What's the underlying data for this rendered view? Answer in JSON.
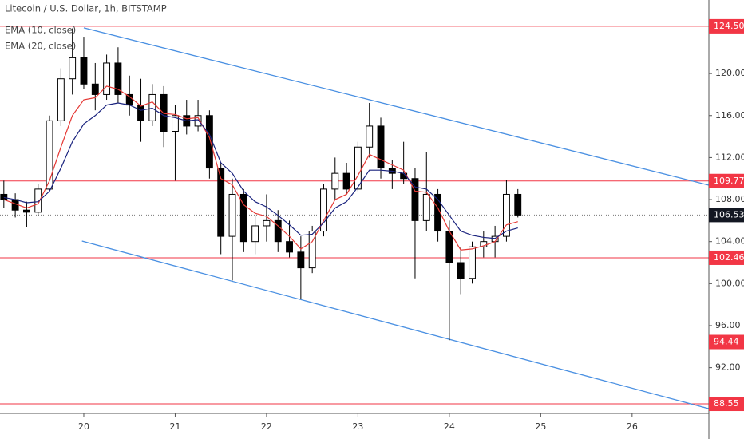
{
  "chart_data": {
    "type": "candlestick",
    "title": "Litecoin / U.S. Dollar, 1h, BITSTAMP",
    "x": [
      19.125,
      19.25,
      19.375,
      19.5,
      19.625,
      19.75,
      19.875,
      20.0,
      20.125,
      20.25,
      20.375,
      20.5,
      20.625,
      20.75,
      20.875,
      21.0,
      21.125,
      21.25,
      21.375,
      21.5,
      21.625,
      21.75,
      21.875,
      22.0,
      22.125,
      22.25,
      22.375,
      22.5,
      22.625,
      22.75,
      22.875,
      23.0,
      23.125,
      23.25,
      23.375,
      23.5,
      23.625,
      23.75,
      23.875,
      24.0,
      24.125,
      24.25,
      24.375,
      24.5,
      24.625,
      24.75
    ],
    "open": [
      108.5,
      108.0,
      107.0,
      106.8,
      109.0,
      115.5,
      119.5,
      121.5,
      119.0,
      118.0,
      121.0,
      118.0,
      117.0,
      115.5,
      118.0,
      114.5,
      116.0,
      115.0,
      116.0,
      111.0,
      104.5,
      108.5,
      104.0,
      105.5,
      106.0,
      104.0,
      103.0,
      101.5,
      105.0,
      109.0,
      110.5,
      109.0,
      113.0,
      115.0,
      111.0,
      110.5,
      110.0,
      106.0,
      108.5,
      105.0,
      102.0,
      100.5,
      103.5,
      104.0,
      104.5,
      108.5
    ],
    "high": [
      109.8,
      108.6,
      107.8,
      109.5,
      116.0,
      120.5,
      124.3,
      123.5,
      121.0,
      121.8,
      122.5,
      119.8,
      119.5,
      119.0,
      118.8,
      117.0,
      117.5,
      117.5,
      116.5,
      111.5,
      110.0,
      109.0,
      106.5,
      108.5,
      107.0,
      106.0,
      104.5,
      105.5,
      109.5,
      112.0,
      111.5,
      113.5,
      117.2,
      115.8,
      111.8,
      113.5,
      111.0,
      112.5,
      109.0,
      106.0,
      103.5,
      104.0,
      105.0,
      105.5,
      109.9,
      109.0
    ],
    "low": [
      107.2,
      106.3,
      105.4,
      106.5,
      108.8,
      115.0,
      118.0,
      118.5,
      116.5,
      117.5,
      117.2,
      116.0,
      113.5,
      115.0,
      113.0,
      109.8,
      114.2,
      114.5,
      110.0,
      102.8,
      100.3,
      103.0,
      102.8,
      104.0,
      103.0,
      102.5,
      98.5,
      101.0,
      104.5,
      108.0,
      108.5,
      108.8,
      112.0,
      110.0,
      109.0,
      109.5,
      100.5,
      105.0,
      104.0,
      94.6,
      99.0,
      100.0,
      102.5,
      102.5,
      104.0,
      106.3
    ],
    "close": [
      108.0,
      107.0,
      106.8,
      109.0,
      115.5,
      119.5,
      121.5,
      119.0,
      118.0,
      121.0,
      118.0,
      117.0,
      115.5,
      118.0,
      114.5,
      116.0,
      115.0,
      116.0,
      111.0,
      104.5,
      108.5,
      104.0,
      105.5,
      106.0,
      104.0,
      103.0,
      101.5,
      105.0,
      109.0,
      110.5,
      109.0,
      113.0,
      115.0,
      111.0,
      110.5,
      110.0,
      106.0,
      108.5,
      105.0,
      102.0,
      100.5,
      103.5,
      104.0,
      104.5,
      108.5,
      106.53
    ],
    "series": [
      {
        "name": "EMA (10, close)",
        "color": "#e53935",
        "values": [
          108.0,
          107.6,
          107.2,
          107.6,
          109.8,
          113.0,
          116.0,
          117.5,
          117.7,
          118.8,
          118.5,
          117.8,
          116.9,
          117.3,
          116.2,
          116.1,
          115.7,
          115.8,
          113.9,
          110.0,
          109.4,
          107.5,
          106.7,
          106.4,
          105.5,
          104.5,
          103.3,
          104.0,
          106.0,
          108.0,
          108.5,
          110.3,
          112.3,
          111.8,
          111.3,
          110.8,
          108.8,
          108.7,
          107.2,
          105.0,
          103.2,
          103.3,
          103.6,
          104.0,
          105.6,
          105.9
        ]
      },
      {
        "name": "EMA (20, close)",
        "color": "#1a237e",
        "values": [
          108.2,
          108.0,
          107.7,
          107.8,
          108.8,
          111.0,
          113.5,
          115.2,
          116.0,
          117.0,
          117.2,
          117.0,
          116.5,
          116.7,
          116.0,
          115.8,
          115.5,
          115.6,
          114.2,
          111.5,
          110.5,
          108.8,
          107.8,
          107.3,
          106.5,
          105.6,
          104.6,
          104.7,
          105.8,
          107.2,
          107.8,
          109.2,
          110.8,
          110.8,
          110.7,
          110.5,
          109.2,
          109.0,
          108.0,
          106.5,
          105.0,
          104.6,
          104.4,
          104.3,
          105.0,
          105.3
        ]
      }
    ],
    "up_color": "#ffffff",
    "down_color": "#000000",
    "xlim": [
      19.083,
      26.84
    ],
    "xticks": [
      20,
      21,
      22,
      23,
      24,
      25,
      26
    ],
    "ylim": [
      87.64,
      127.0
    ],
    "yticks": [
      {
        "value": 92,
        "label": "92.00"
      },
      {
        "value": 96,
        "label": "96.00"
      },
      {
        "value": 100,
        "label": "100.00"
      },
      {
        "value": 104,
        "label": "104.00"
      },
      {
        "value": 108,
        "label": "108.00"
      },
      {
        "value": 112,
        "label": "112.00"
      },
      {
        "value": 116,
        "label": "116.00"
      },
      {
        "value": 120,
        "label": "120.00"
      }
    ],
    "levels": [
      {
        "value": 124.5,
        "label": "124.50"
      },
      109.77,
      102.46,
      94.44,
      88.55
    ],
    "level_color": "#f23645",
    "last_price": 106.53,
    "trendline_color": "#4a90e2",
    "trendlines": [
      {
        "x": [
          20.0,
          26.84
        ],
        "values": [
          124.35,
          109.37
        ]
      },
      {
        "x": [
          19.98,
          26.84
        ],
        "values": [
          104.05,
          88.09
        ]
      }
    ]
  }
}
